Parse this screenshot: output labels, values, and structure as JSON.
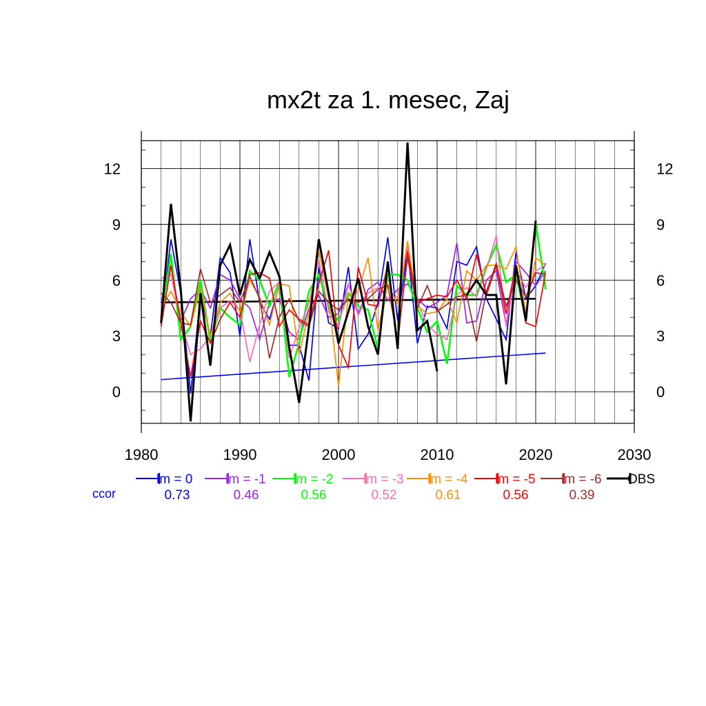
{
  "chart_data": {
    "type": "line",
    "title": "mx2t za 1. mesec, Zaj",
    "xlim": [
      1980,
      2030
    ],
    "ylim": [
      -1.7,
      13.5
    ],
    "x_ticks": [
      "1980",
      "1990",
      "2000",
      "2010",
      "2020",
      "2030"
    ],
    "y_ticks": [
      "0",
      "3",
      "6",
      "9",
      "12"
    ],
    "grid": true,
    "legend_position": "bottom",
    "ccor_label": "ccor",
    "series": [
      {
        "name": "lm = 0",
        "color": "#0000ff",
        "ccor": "0.73",
        "x": [
          1982,
          1983,
          1984,
          1985,
          1986,
          1987,
          1988,
          1989,
          1990,
          1991,
          1992,
          1993,
          1994,
          1995,
          1996,
          1997,
          1998,
          1999,
          2000,
          2001,
          2002,
          2003,
          2004,
          2005,
          2006,
          2007,
          2008,
          2009,
          2010,
          2011,
          2012,
          2013,
          2014,
          2015,
          2016,
          2017,
          2018,
          2019,
          2020,
          2021
        ],
        "y": [
          3.6,
          8.2,
          5.3,
          -0.1,
          5.2,
          3.0,
          7.2,
          6.4,
          3.0,
          8.2,
          4.8,
          3.9,
          5.7,
          2.5,
          2.5,
          0.6,
          6.7,
          3.7,
          3.4,
          6.7,
          2.3,
          3.1,
          4.8,
          8.3,
          3.8,
          7.7,
          2.6,
          4.6,
          4.5,
          3.4,
          7.0,
          6.8,
          7.8,
          5.0,
          3.9,
          2.8,
          7.5,
          5.0,
          5.7,
          6.9
        ]
      },
      {
        "name": "lm = -1",
        "color": "#a020f0",
        "ccor": "0.46",
        "x": [
          1982,
          1983,
          1984,
          1985,
          1986,
          1987,
          1988,
          1989,
          1990,
          1991,
          1992,
          1993,
          1994,
          1995,
          1996,
          1997,
          1998,
          1999,
          2000,
          2001,
          2002,
          2003,
          2004,
          2005,
          2006,
          2007,
          2008,
          2009,
          2010,
          2011,
          2012,
          2013,
          2014,
          2015,
          2016,
          2017,
          2018,
          2019,
          2020,
          2021
        ],
        "y": [
          4.8,
          6.8,
          3.8,
          5.0,
          5.5,
          4.5,
          6.3,
          6.0,
          5.0,
          4.5,
          2.8,
          4.8,
          5.0,
          3.2,
          2.8,
          4.5,
          5.2,
          4.0,
          4.2,
          5.8,
          4.2,
          5.5,
          5.9,
          4.9,
          5.5,
          5.8,
          5.0,
          4.5,
          4.8,
          5.2,
          8.0,
          3.7,
          3.8,
          6.0,
          6.5,
          3.6,
          7.0,
          6.4,
          5.7,
          6.5
        ]
      },
      {
        "name": "lm = -2",
        "color": "#00ff00",
        "ccor": "0.56",
        "x": [
          1982,
          1983,
          1984,
          1985,
          1986,
          1987,
          1988,
          1989,
          1990,
          1991,
          1992,
          1993,
          1994,
          1995,
          1996,
          1997,
          1998,
          1999,
          2000,
          2001,
          2002,
          2003,
          2004,
          2005,
          2006,
          2007,
          2008,
          2009,
          2010,
          2011,
          2012,
          2013,
          2014,
          2015,
          2016,
          2017,
          2018,
          2019,
          2020,
          2021
        ],
        "y": [
          4.0,
          7.4,
          2.8,
          3.5,
          6.0,
          2.7,
          4.5,
          4.0,
          3.6,
          6.5,
          6.0,
          4.6,
          5.9,
          0.8,
          2.6,
          5.4,
          6.3,
          4.5,
          3.8,
          5.3,
          4.6,
          4.4,
          2.3,
          6.3,
          6.3,
          6.0,
          4.5,
          3.2,
          3.8,
          1.5,
          5.7,
          5.2,
          5.2,
          6.7,
          7.9,
          5.9,
          6.3,
          3.9,
          9.1,
          5.5
        ]
      },
      {
        "name": "lm = -3",
        "color": "#ff69b4",
        "ccor": "0.52",
        "x": [
          1982,
          1983,
          1984,
          1985,
          1986,
          1987,
          1988,
          1989,
          1990,
          1991,
          1992,
          1993,
          1994,
          1995,
          1996,
          1997,
          1998,
          1999,
          2000,
          2001,
          2002,
          2003,
          2004,
          2005,
          2006,
          2007,
          2008,
          2009,
          2010,
          2011,
          2012,
          2013,
          2014,
          2015,
          2016,
          2017,
          2018,
          2019,
          2020,
          2021
        ],
        "y": [
          6.1,
          6.3,
          3.8,
          2.0,
          2.3,
          3.0,
          4.5,
          4.9,
          4.4,
          1.6,
          3.6,
          5.4,
          5.9,
          1.8,
          3.4,
          4.8,
          7.1,
          4.3,
          3.5,
          5.8,
          4.1,
          5.3,
          5.6,
          5.0,
          5.1,
          7.8,
          4.8,
          3.6,
          3.1,
          2.8,
          5.2,
          5.6,
          5.1,
          6.6,
          8.4,
          3.5,
          6.5,
          5.6,
          6.5,
          6.8
        ]
      },
      {
        "name": "lm = -4",
        "color": "#ff8c00",
        "ccor": "0.61",
        "x": [
          1982,
          1983,
          1984,
          1985,
          1986,
          1987,
          1988,
          1989,
          1990,
          1991,
          1992,
          1993,
          1994,
          1995,
          1996,
          1997,
          1998,
          1999,
          2000,
          2001,
          2002,
          2003,
          2004,
          2005,
          2006,
          2007,
          2008,
          2009,
          2010,
          2011,
          2012,
          2013,
          2014,
          2015,
          2016,
          2017,
          2018,
          2019,
          2020,
          2021
        ],
        "y": [
          4.5,
          5.4,
          4.3,
          3.5,
          5.6,
          3.0,
          4.8,
          5.3,
          4.3,
          6.0,
          5.1,
          3.6,
          5.8,
          5.7,
          2.0,
          4.3,
          7.6,
          5.0,
          0.3,
          5.2,
          5.4,
          7.2,
          3.3,
          5.8,
          4.7,
          8.1,
          4.6,
          4.2,
          4.3,
          5.0,
          3.7,
          6.5,
          6.0,
          6.8,
          6.8,
          6.6,
          7.8,
          4.2,
          7.2,
          6.8
        ]
      },
      {
        "name": "lm = -5",
        "color": "#ff0000",
        "ccor": "0.56",
        "x": [
          1982,
          1983,
          1984,
          1985,
          1986,
          1987,
          1988,
          1989,
          1990,
          1991,
          1992,
          1993,
          1994,
          1995,
          1996,
          1997,
          1998,
          1999,
          2000,
          2001,
          2002,
          2003,
          2004,
          2005,
          2006,
          2007,
          2008,
          2009,
          2010,
          2011,
          2012,
          2013,
          2014,
          2015,
          2016,
          2017,
          2018,
          2019,
          2020,
          2021
        ],
        "y": [
          3.5,
          6.8,
          3.7,
          0.8,
          3.8,
          2.6,
          3.9,
          4.8,
          4.0,
          6.3,
          6.4,
          6.1,
          3.5,
          4.4,
          3.9,
          3.6,
          5.8,
          7.6,
          2.5,
          1.3,
          6.7,
          4.7,
          4.6,
          6.8,
          2.6,
          7.5,
          4.8,
          5.0,
          5.2,
          5.1,
          6.0,
          5.0,
          7.4,
          5.2,
          6.8,
          4.2,
          6.8,
          3.7,
          3.5,
          6.4
        ]
      },
      {
        "name": "lm = -6",
        "color": "#a52a2a",
        "ccor": "0.39",
        "x": [
          1982,
          1983,
          1984,
          1985,
          1986,
          1987,
          1988,
          1989,
          1990,
          1991,
          1992,
          1993,
          1994,
          1995,
          1996,
          1997,
          1998,
          1999,
          2000,
          2001,
          2002,
          2003,
          2004,
          2005,
          2006,
          2007,
          2008,
          2009,
          2010,
          2011,
          2012,
          2013,
          2014,
          2015,
          2016,
          2017,
          2018,
          2019,
          2020,
          2021
        ],
        "y": [
          5.3,
          4.8,
          3.7,
          3.6,
          6.6,
          4.8,
          5.2,
          5.6,
          4.8,
          6.2,
          5.0,
          1.8,
          4.0,
          5.0,
          3.8,
          3.5,
          5.4,
          4.8,
          4.4,
          5.0,
          4.8,
          5.0,
          5.5,
          5.7,
          2.8,
          7.2,
          4.5,
          5.7,
          4.3,
          4.7,
          5.1,
          5.2,
          2.7,
          5.4,
          6.9,
          4.6,
          6.0,
          5.1,
          6.4,
          6.3
        ]
      },
      {
        "name": "OBS",
        "color": "#000000",
        "ccor": "",
        "x": [
          1982,
          1983,
          1984,
          1985,
          1986,
          1987,
          1988,
          1989,
          1990,
          1991,
          1992,
          1993,
          1994,
          1995,
          1996,
          1997,
          1998,
          1999,
          2000,
          2001,
          2002,
          2003,
          2004,
          2005,
          2006,
          2007,
          2008,
          2009,
          2010
        ],
        "y": [
          3.7,
          10.1,
          5.5,
          -1.6,
          5.3,
          1.4,
          6.8,
          7.9,
          5.2,
          7.1,
          6.1,
          7.5,
          6.2,
          2.4,
          -0.6,
          3.5,
          8.2,
          5.3,
          2.6,
          4.3,
          6.1,
          3.5,
          2.0,
          7.0,
          2.3,
          13.4,
          3.3,
          3.8,
          1.1
        ],
        "x2": [
          2013,
          2014,
          2015,
          2016,
          2017,
          2018,
          2019,
          2020
        ],
        "y2": [
          5.2,
          6.0,
          5.2,
          5.2,
          0.4,
          6.8,
          3.8,
          9.2
        ]
      }
    ],
    "trend_lines": [
      {
        "name": "lm = 0 trend",
        "color": "#0000ff",
        "x": [
          1982,
          2021
        ],
        "y": [
          0.65,
          2.08
        ]
      },
      {
        "name": "OBS trend",
        "color": "#000000",
        "x": [
          1982,
          2020
        ],
        "y": [
          4.8,
          5.0
        ]
      }
    ]
  }
}
